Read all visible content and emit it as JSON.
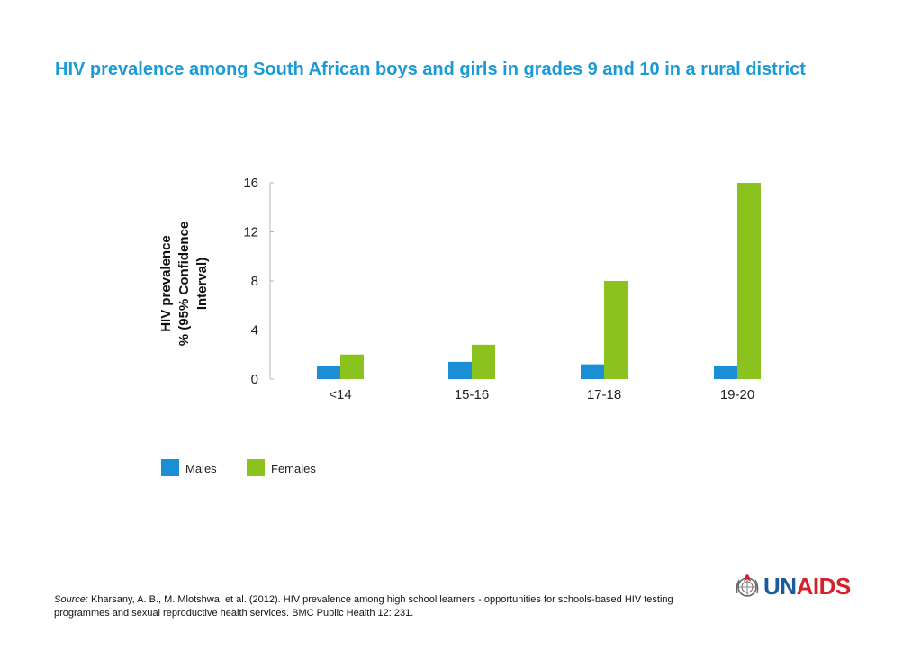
{
  "title": "HIV prevalence among South African boys and girls in grades 9 and 10 in a rural district",
  "colors": {
    "title": "#1a9bd7",
    "males": "#1a8fd6",
    "females": "#8cc21d",
    "brand_red": "#d2232a",
    "brand_blue": "#1b5a9b"
  },
  "chart_data": {
    "type": "bar",
    "categories": [
      "<14",
      "15-16",
      "17-18",
      "19-20"
    ],
    "series": [
      {
        "name": "Males",
        "values": [
          1.1,
          1.4,
          1.2,
          1.1
        ]
      },
      {
        "name": "Females",
        "values": [
          2.0,
          2.8,
          8.0,
          16.0
        ]
      }
    ],
    "ylabel_line1": "HIV prevalence",
    "ylabel_line2": "% (95% Confidence",
    "ylabel_line3": "Interval)",
    "yticks": [
      0,
      4,
      8,
      12,
      16
    ],
    "ylim": [
      0,
      16
    ],
    "legend_position": "bottom-left",
    "grid": false
  },
  "source": {
    "label": "Source:",
    "text": " Kharsany, A. B., M. Mlotshwa, et al. (2012). HIV prevalence among high school learners - opportunities for schools-based HIV testing programmes and sexual reproductive health services. BMC Public Health 12: 231."
  },
  "logo": {
    "prefix": "UN",
    "suffix": "AIDS",
    "emblem": "un-emblem-icon"
  }
}
